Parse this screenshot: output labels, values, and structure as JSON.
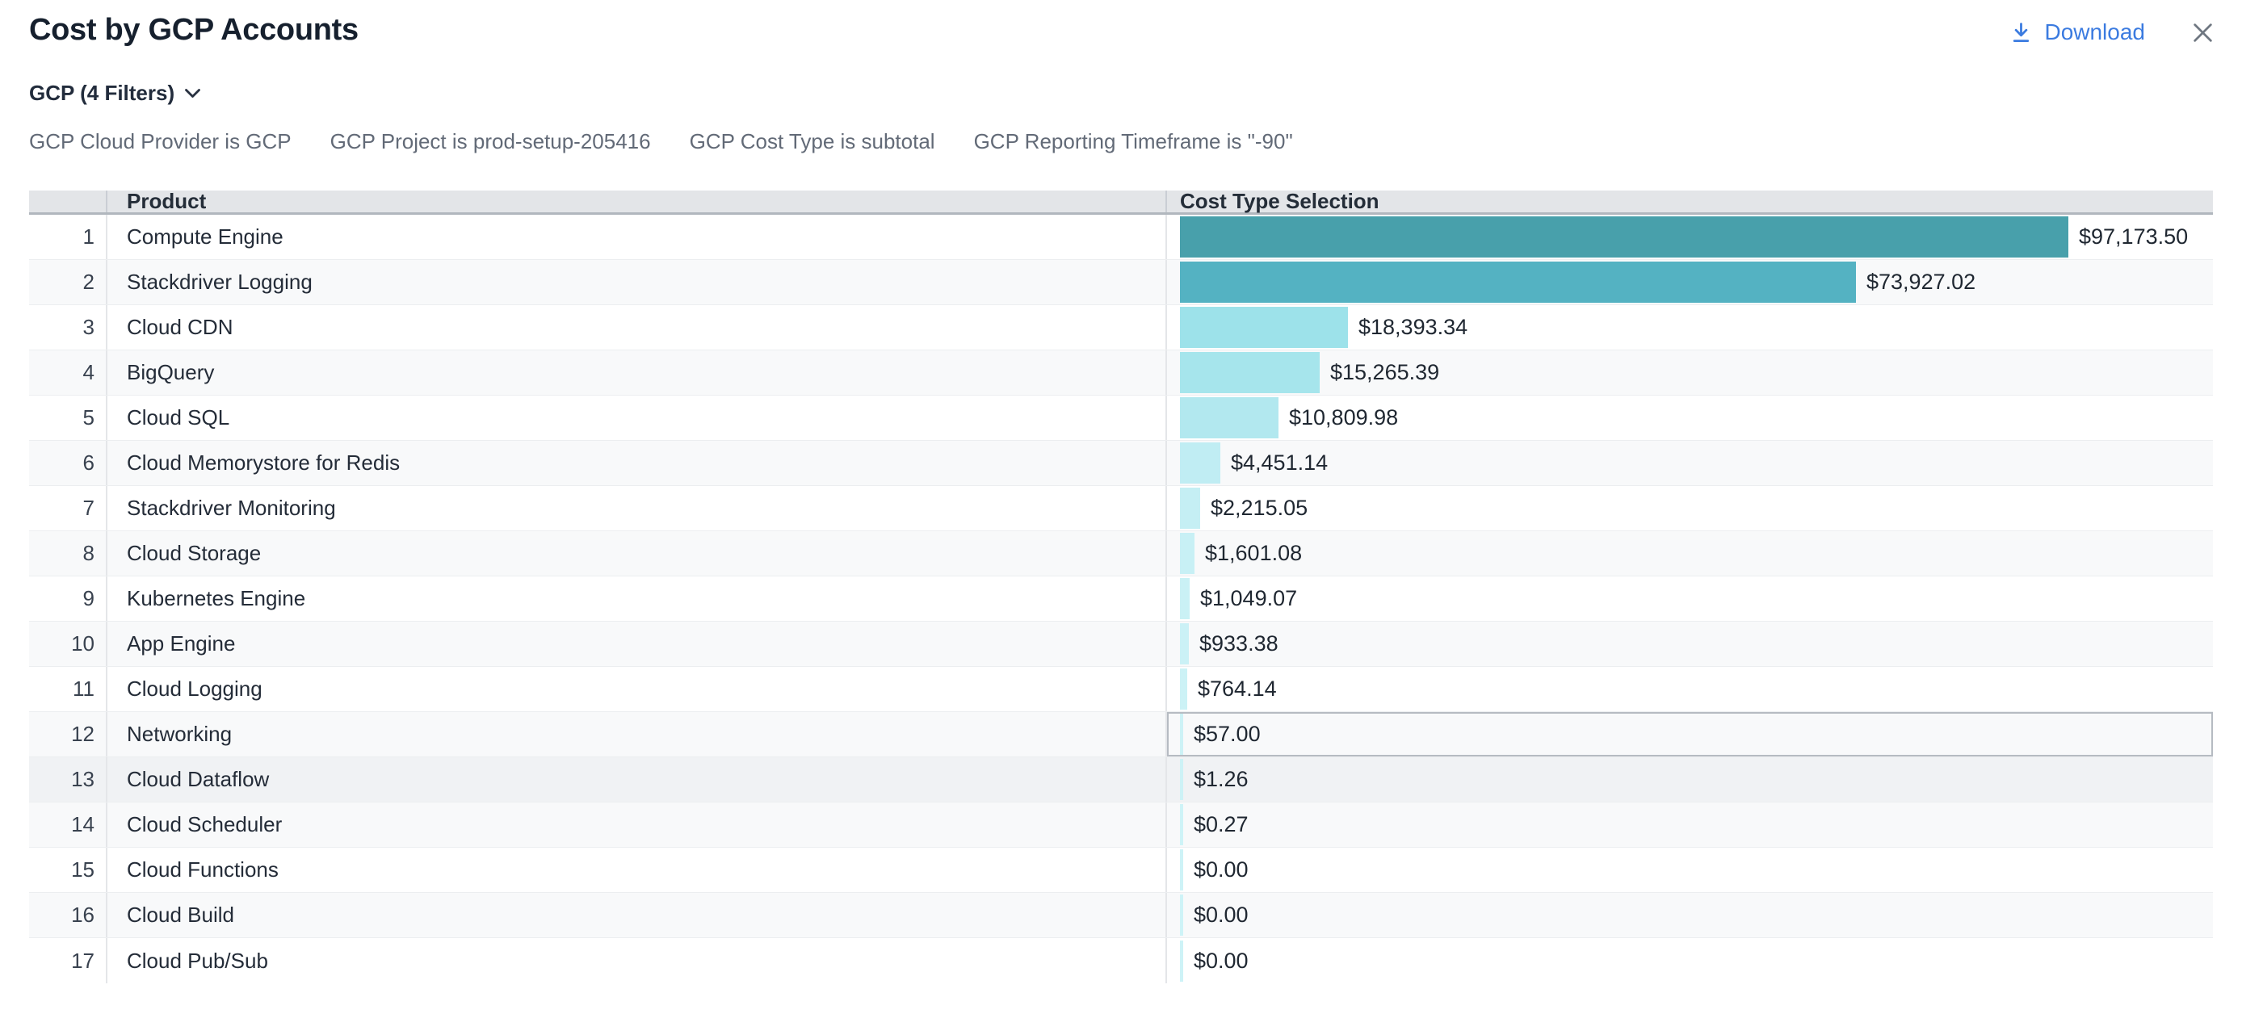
{
  "header": {
    "title": "Cost by GCP Accounts",
    "download_label": "Download"
  },
  "colors": {
    "accent_blue": "#3b7be0",
    "header_bg": "#e3e5e8",
    "stripe_bg": "#f8f9fa",
    "highlight_bg": "#f0f2f4",
    "selected_cell_border": "#b6bbc2"
  },
  "filters": {
    "summary": "GCP (4 Filters)",
    "items": [
      "GCP Cloud Provider is GCP",
      "GCP Project is prod-setup-205416",
      "GCP Cost Type is subtotal",
      "GCP Reporting Timeframe is \"-90\""
    ]
  },
  "table": {
    "columns": [
      "Product",
      "Cost Type Selection"
    ],
    "rows": [
      {
        "num": 1,
        "product": "Compute Engine",
        "value": 97173.5,
        "label": "$97,173.50",
        "bar_color": "#48a0ab"
      },
      {
        "num": 2,
        "product": "Stackdriver Logging",
        "value": 73927.02,
        "label": "$73,927.02",
        "bar_color": "#54b2c2"
      },
      {
        "num": 3,
        "product": "Cloud CDN",
        "value": 18393.34,
        "label": "$18,393.34",
        "bar_color": "#9de2ea"
      },
      {
        "num": 4,
        "product": "BigQuery",
        "value": 15265.39,
        "label": "$15,265.39",
        "bar_color": "#a6e5ec"
      },
      {
        "num": 5,
        "product": "Cloud SQL",
        "value": 10809.98,
        "label": "$10,809.98",
        "bar_color": "#b2e8ef"
      },
      {
        "num": 6,
        "product": "Cloud Memorystore for Redis",
        "value": 4451.14,
        "label": "$4,451.14",
        "bar_color": "#c0edf3"
      },
      {
        "num": 7,
        "product": "Stackdriver Monitoring",
        "value": 2215.05,
        "label": "$2,215.05",
        "bar_color": "#c5eff4"
      },
      {
        "num": 8,
        "product": "Cloud Storage",
        "value": 1601.08,
        "label": "$1,601.08",
        "bar_color": "#c8f0f5"
      },
      {
        "num": 9,
        "product": "Kubernetes Engine",
        "value": 1049.07,
        "label": "$1,049.07",
        "bar_color": "#caf1f5"
      },
      {
        "num": 10,
        "product": "App Engine",
        "value": 933.38,
        "label": "$933.38",
        "bar_color": "#cbf1f6"
      },
      {
        "num": 11,
        "product": "Cloud Logging",
        "value": 764.14,
        "label": "$764.14",
        "bar_color": "#ccf2f6"
      },
      {
        "num": 12,
        "product": "Networking",
        "value": 57.0,
        "label": "$57.00",
        "bar_color": "#cdf2f6",
        "selected": true
      },
      {
        "num": 13,
        "product": "Cloud Dataflow",
        "value": 1.26,
        "label": "$1.26",
        "bar_color": "#cdf2f6",
        "highlighted": true
      },
      {
        "num": 14,
        "product": "Cloud Scheduler",
        "value": 0.27,
        "label": "$0.27",
        "bar_color": "#cef3f7"
      },
      {
        "num": 15,
        "product": "Cloud Functions",
        "value": 0.0,
        "label": "$0.00",
        "bar_color": "#cef3f7"
      },
      {
        "num": 16,
        "product": "Cloud Build",
        "value": 0.0,
        "label": "$0.00",
        "bar_color": "#cef3f7"
      },
      {
        "num": 17,
        "product": "Cloud Pub/Sub",
        "value": 0.0,
        "label": "$0.00",
        "bar_color": "#cef3f7"
      }
    ]
  },
  "chart_data": {
    "type": "bar",
    "orientation": "horizontal",
    "title": "Cost by GCP Accounts",
    "xlabel": "Cost Type Selection",
    "ylabel": "Product",
    "categories": [
      "Compute Engine",
      "Stackdriver Logging",
      "Cloud CDN",
      "BigQuery",
      "Cloud SQL",
      "Cloud Memorystore for Redis",
      "Stackdriver Monitoring",
      "Cloud Storage",
      "Kubernetes Engine",
      "App Engine",
      "Cloud Logging",
      "Networking",
      "Cloud Dataflow",
      "Cloud Scheduler",
      "Cloud Functions",
      "Cloud Build",
      "Cloud Pub/Sub"
    ],
    "values": [
      97173.5,
      73927.02,
      18393.34,
      15265.39,
      10809.98,
      4451.14,
      2215.05,
      1601.08,
      1049.07,
      933.38,
      764.14,
      57.0,
      1.26,
      0.27,
      0.0,
      0.0,
      0.0
    ],
    "value_labels": [
      "$97,173.50",
      "$73,927.02",
      "$18,393.34",
      "$15,265.39",
      "$10,809.98",
      "$4,451.14",
      "$2,215.05",
      "$1,601.08",
      "$1,049.07",
      "$933.38",
      "$764.14",
      "$57.00",
      "$1.26",
      "$0.27",
      "$0.00",
      "$0.00",
      "$0.00"
    ],
    "xlim": [
      0,
      97173.5
    ],
    "grid": false,
    "legend_position": "none"
  }
}
